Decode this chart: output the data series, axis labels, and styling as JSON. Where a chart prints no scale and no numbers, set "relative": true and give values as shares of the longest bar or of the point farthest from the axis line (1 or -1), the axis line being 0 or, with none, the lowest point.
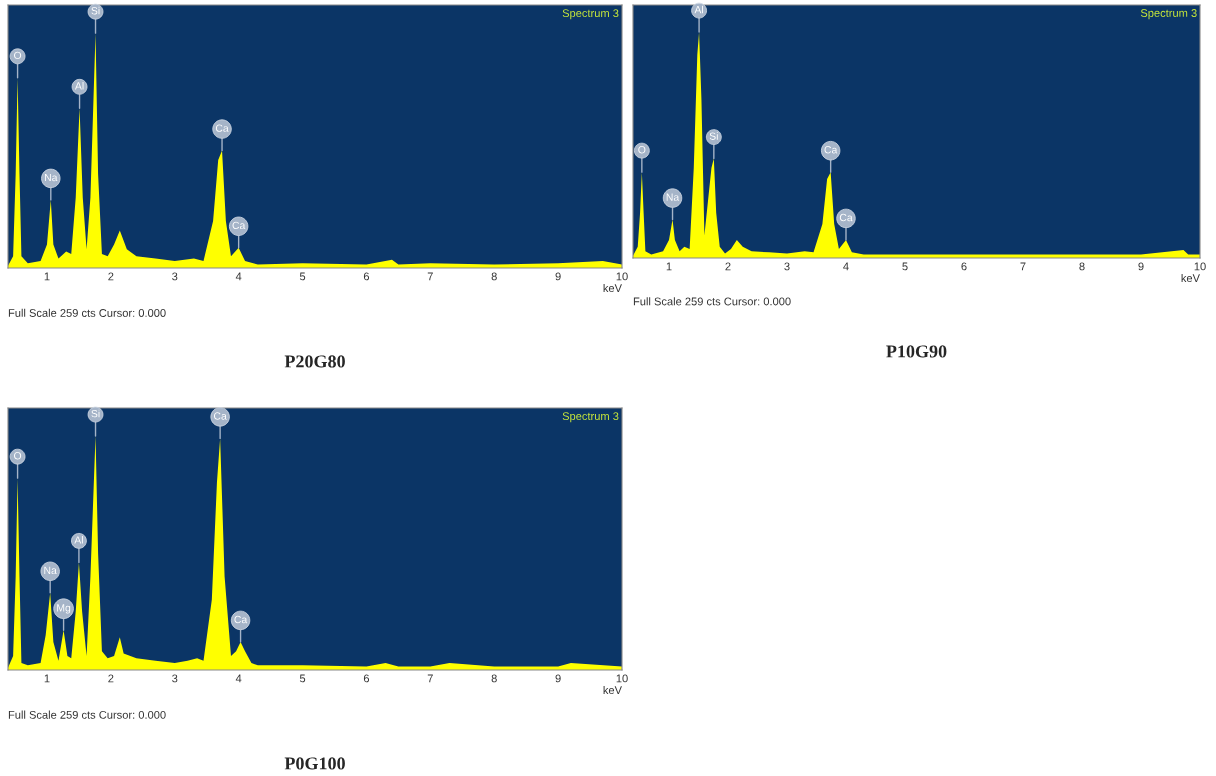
{
  "chart_data": [
    {
      "type": "area",
      "title": "P20G80",
      "xlabel": "keV",
      "xlim": [
        0.39,
        10
      ],
      "xticks": [
        1,
        2,
        3,
        4,
        5,
        6,
        7,
        8,
        9,
        10
      ],
      "relative": true,
      "series": [
        {
          "color": "#ffff00",
          "x": [
            0.39,
            0.47,
            0.51,
            0.54,
            0.57,
            0.6,
            0.7,
            0.9,
            1.0,
            1.06,
            1.1,
            1.18,
            1.3,
            1.38,
            1.45,
            1.51,
            1.56,
            1.62,
            1.68,
            1.76,
            1.8,
            1.86,
            1.95,
            2.05,
            2.14,
            2.25,
            2.4,
            2.7,
            3.0,
            3.3,
            3.45,
            3.6,
            3.68,
            3.74,
            3.8,
            3.88,
            4.0,
            4.1,
            4.3,
            5.0,
            6.0,
            6.4,
            6.5,
            7.0,
            8.0,
            9.0,
            9.7,
            10.0
          ],
          "values": [
            0.01,
            0.05,
            0.4,
            0.81,
            0.4,
            0.05,
            0.02,
            0.03,
            0.1,
            0.29,
            0.1,
            0.04,
            0.07,
            0.06,
            0.3,
            0.68,
            0.3,
            0.08,
            0.3,
            1.0,
            0.4,
            0.06,
            0.05,
            0.1,
            0.16,
            0.08,
            0.05,
            0.04,
            0.03,
            0.04,
            0.03,
            0.2,
            0.46,
            0.5,
            0.2,
            0.05,
            0.086,
            0.03,
            0.015,
            0.02,
            0.015,
            0.035,
            0.015,
            0.02,
            0.015,
            0.02,
            0.03,
            0.015
          ]
        }
      ],
      "annotations": [
        "Spectrum 3",
        "Full Scale 259 cts Cursor: 0.000",
        {
          "text": "O",
          "x": 0.54,
          "y": 0.81
        },
        {
          "text": "Na",
          "x": 1.06,
          "y": 0.29
        },
        {
          "text": "Al",
          "x": 1.51,
          "y": 0.68
        },
        {
          "text": "Si",
          "x": 1.76,
          "y": 1.0
        },
        {
          "text": "Ca",
          "x": 3.74,
          "y": 0.5
        },
        {
          "text": "Ca",
          "x": 4.0,
          "y": 0.086
        }
      ]
    },
    {
      "type": "area",
      "title": "P10G90",
      "xlabel": "keV",
      "xlim": [
        0.39,
        10
      ],
      "xticks": [
        1,
        2,
        3,
        4,
        5,
        6,
        7,
        8,
        9,
        10
      ],
      "relative": true,
      "series": [
        {
          "color": "#ffff00",
          "x": [
            0.39,
            0.47,
            0.51,
            0.54,
            0.57,
            0.6,
            0.7,
            0.9,
            1.0,
            1.06,
            1.1,
            1.18,
            1.26,
            1.35,
            1.42,
            1.48,
            1.51,
            1.55,
            1.6,
            1.66,
            1.72,
            1.76,
            1.8,
            1.86,
            1.95,
            2.05,
            2.15,
            2.25,
            2.4,
            2.7,
            3.0,
            3.3,
            3.45,
            3.6,
            3.68,
            3.74,
            3.8,
            3.88,
            4.0,
            4.1,
            4.3,
            5.0,
            6.0,
            6.5,
            7.0,
            8.0,
            9.0,
            9.72,
            9.8,
            10.0
          ],
          "values": [
            0.01,
            0.05,
            0.2,
            0.38,
            0.2,
            0.03,
            0.015,
            0.03,
            0.08,
            0.17,
            0.08,
            0.03,
            0.05,
            0.04,
            0.4,
            0.9,
            1.0,
            0.7,
            0.1,
            0.25,
            0.4,
            0.44,
            0.2,
            0.05,
            0.02,
            0.04,
            0.08,
            0.05,
            0.03,
            0.025,
            0.02,
            0.03,
            0.025,
            0.15,
            0.35,
            0.38,
            0.15,
            0.04,
            0.08,
            0.025,
            0.015,
            0.015,
            0.015,
            0.015,
            0.015,
            0.015,
            0.015,
            0.035,
            0.015,
            0.015
          ]
        }
      ],
      "annotations": [
        "Spectrum 3",
        "Full Scale 259 cts Cursor: 0.000",
        {
          "text": "O",
          "x": 0.54,
          "y": 0.38
        },
        {
          "text": "Na",
          "x": 1.06,
          "y": 0.17
        },
        {
          "text": "Al",
          "x": 1.51,
          "y": 1.0
        },
        {
          "text": "Si",
          "x": 1.76,
          "y": 0.44
        },
        {
          "text": "Ca",
          "x": 3.74,
          "y": 0.38
        },
        {
          "text": "Ca",
          "x": 4.0,
          "y": 0.08
        }
      ]
    },
    {
      "type": "area",
      "title": "P0G100",
      "xlabel": "keV",
      "xlim": [
        0.39,
        10
      ],
      "xticks": [
        1,
        2,
        3,
        4,
        5,
        6,
        7,
        8,
        9,
        10
      ],
      "relative": true,
      "series": [
        {
          "color": "#ffff00",
          "x": [
            0.39,
            0.47,
            0.51,
            0.54,
            0.57,
            0.6,
            0.7,
            0.9,
            0.98,
            1.05,
            1.1,
            1.18,
            1.26,
            1.32,
            1.38,
            1.45,
            1.5,
            1.55,
            1.62,
            1.68,
            1.76,
            1.8,
            1.86,
            1.95,
            2.05,
            2.14,
            2.2,
            2.4,
            2.7,
            3.0,
            3.2,
            3.35,
            3.45,
            3.58,
            3.66,
            3.71,
            3.78,
            3.88,
            3.96,
            4.03,
            4.1,
            4.2,
            4.3,
            5.0,
            6.0,
            6.3,
            6.5,
            7.0,
            7.3,
            8.0,
            9.0,
            9.2,
            10.0
          ],
          "values": [
            0.01,
            0.06,
            0.4,
            0.82,
            0.4,
            0.03,
            0.02,
            0.03,
            0.15,
            0.33,
            0.12,
            0.04,
            0.17,
            0.06,
            0.05,
            0.25,
            0.46,
            0.25,
            0.06,
            0.4,
            1.0,
            0.5,
            0.08,
            0.05,
            0.06,
            0.14,
            0.07,
            0.05,
            0.04,
            0.03,
            0.04,
            0.05,
            0.04,
            0.3,
            0.8,
            0.99,
            0.4,
            0.06,
            0.08,
            0.12,
            0.08,
            0.03,
            0.02,
            0.02,
            0.015,
            0.03,
            0.015,
            0.015,
            0.03,
            0.015,
            0.015,
            0.03,
            0.015
          ]
        }
      ],
      "annotations": [
        "Spectrum 3",
        "Full Scale 259 cts Cursor: 0.000",
        {
          "text": "O",
          "x": 0.54,
          "y": 0.82
        },
        {
          "text": "Na",
          "x": 1.05,
          "y": 0.33
        },
        {
          "text": "Mg",
          "x": 1.26,
          "y": 0.17
        },
        {
          "text": "Al",
          "x": 1.5,
          "y": 0.46
        },
        {
          "text": "Si",
          "x": 1.76,
          "y": 1.0
        },
        {
          "text": "Ca",
          "x": 3.71,
          "y": 0.99
        },
        {
          "text": "Ca",
          "x": 4.03,
          "y": 0.12
        }
      ]
    }
  ]
}
